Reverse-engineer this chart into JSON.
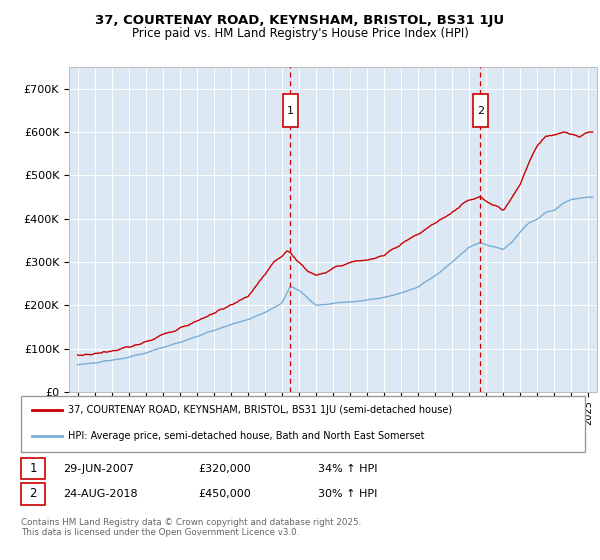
{
  "title_line1": "37, COURTENAY ROAD, KEYNSHAM, BRISTOL, BS31 1JU",
  "title_line2": "Price paid vs. HM Land Registry's House Price Index (HPI)",
  "background_color": "#dce9f5",
  "plot_bg_color": "#dce9f5",
  "fig_bg_color": "#ffffff",
  "red_color": "#cc0000",
  "blue_color": "#7aadd4",
  "marker1_date": "29-JUN-2007",
  "marker1_price": 320000,
  "marker1_note": "34% ↑ HPI",
  "marker1_x": 2007.5,
  "marker2_date": "24-AUG-2018",
  "marker2_price": 450000,
  "marker2_note": "30% ↑ HPI",
  "marker2_x": 2018.65,
  "ylim_min": 0,
  "ylim_max": 750000,
  "xlim_min": 1994.5,
  "xlim_max": 2025.5,
  "legend_line1": "37, COURTENAY ROAD, KEYNSHAM, BRISTOL, BS31 1JU (semi-detached house)",
  "legend_line2": "HPI: Average price, semi-detached house, Bath and North East Somerset",
  "footer": "Contains HM Land Registry data © Crown copyright and database right 2025.\nThis data is licensed under the Open Government Licence v3.0."
}
